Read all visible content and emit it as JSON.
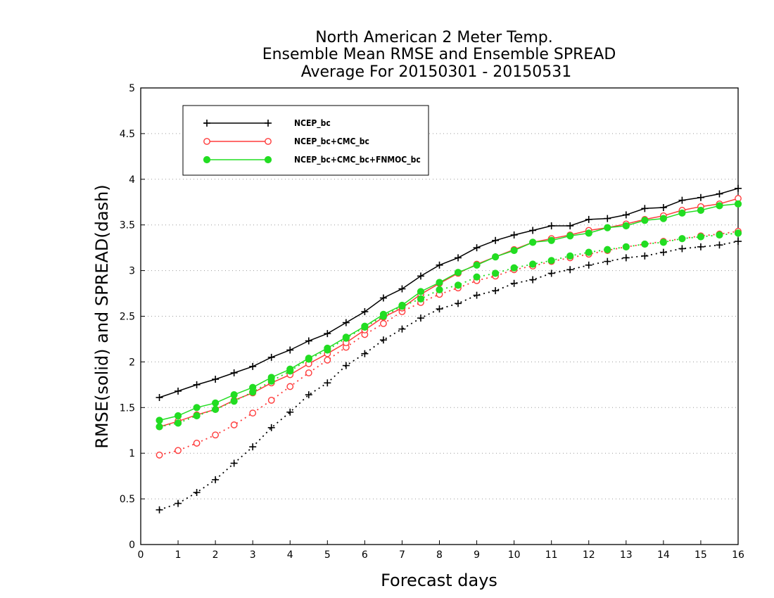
{
  "chart_data": {
    "type": "line",
    "title": [
      "North American 2 Meter Temp.",
      "Ensemble Mean RMSE and Ensemble SPREAD",
      "Average For 20150301 - 20150531"
    ],
    "xlabel": "Forecast days",
    "ylabel": "RMSE(solid) and SPREAD(dash)",
    "xlim": [
      0,
      16
    ],
    "ylim": [
      0,
      5
    ],
    "xticks": [
      0,
      1,
      2,
      3,
      4,
      5,
      6,
      7,
      8,
      9,
      10,
      11,
      12,
      13,
      14,
      15,
      16
    ],
    "yticks": [
      0,
      0.5,
      1,
      1.5,
      2,
      2.5,
      3,
      3.5,
      4,
      4.5,
      5
    ],
    "ytick_labels": [
      "0",
      "0.5",
      "1",
      "1.5",
      "2",
      "2.5",
      "3",
      "3.5",
      "4",
      "4.5",
      "5"
    ],
    "grid": "horizontal dotted",
    "legend_position": "top-left",
    "x": [
      0.5,
      1,
      1.5,
      2,
      2.5,
      3,
      3.5,
      4,
      4.5,
      5,
      5.5,
      6,
      6.5,
      7,
      7.5,
      8,
      8.5,
      9,
      9.5,
      10,
      10.5,
      11,
      11.5,
      12,
      12.5,
      13,
      13.5,
      14,
      14.5,
      15,
      15.5,
      16
    ],
    "series": [
      {
        "name": "NCEP_bc",
        "color": "#000000",
        "marker": "plus",
        "rmse": [
          1.61,
          1.68,
          1.75,
          1.81,
          1.88,
          1.95,
          2.05,
          2.13,
          2.23,
          2.31,
          2.43,
          2.55,
          2.7,
          2.8,
          2.94,
          3.06,
          3.14,
          3.25,
          3.33,
          3.39,
          3.44,
          3.49,
          3.49,
          3.56,
          3.57,
          3.61,
          3.68,
          3.69,
          3.77,
          3.8,
          3.84,
          3.9
        ],
        "spread": [
          0.38,
          0.45,
          0.57,
          0.71,
          0.89,
          1.07,
          1.28,
          1.45,
          1.64,
          1.77,
          1.96,
          2.09,
          2.24,
          2.36,
          2.48,
          2.58,
          2.64,
          2.73,
          2.78,
          2.86,
          2.9,
          2.97,
          3.01,
          3.06,
          3.1,
          3.14,
          3.16,
          3.2,
          3.24,
          3.26,
          3.28,
          3.32
        ]
      },
      {
        "name": "NCEP_bc+CMC_bc",
        "color": "#ff3b3b",
        "marker": "open-circle",
        "rmse": [
          1.29,
          1.35,
          1.42,
          1.48,
          1.58,
          1.66,
          1.77,
          1.86,
          1.98,
          2.09,
          2.21,
          2.35,
          2.49,
          2.59,
          2.74,
          2.86,
          2.97,
          3.07,
          3.15,
          3.23,
          3.31,
          3.35,
          3.39,
          3.44,
          3.47,
          3.51,
          3.56,
          3.6,
          3.66,
          3.7,
          3.73,
          3.79
        ],
        "spread": [
          0.98,
          1.03,
          1.11,
          1.2,
          1.31,
          1.44,
          1.58,
          1.73,
          1.88,
          2.02,
          2.16,
          2.3,
          2.42,
          2.55,
          2.65,
          2.74,
          2.81,
          2.89,
          2.94,
          3.01,
          3.05,
          3.1,
          3.14,
          3.18,
          3.22,
          3.26,
          3.29,
          3.32,
          3.35,
          3.38,
          3.4,
          3.43
        ]
      },
      {
        "name": "NCEP_bc+CMC_bc+FNMOC_bc",
        "color": "#22dd22",
        "marker": "filled-circle",
        "rmse": [
          1.36,
          1.41,
          1.5,
          1.55,
          1.64,
          1.72,
          1.83,
          1.92,
          2.04,
          2.15,
          2.27,
          2.39,
          2.52,
          2.62,
          2.77,
          2.87,
          2.98,
          3.06,
          3.15,
          3.22,
          3.31,
          3.33,
          3.38,
          3.41,
          3.47,
          3.49,
          3.55,
          3.57,
          3.63,
          3.66,
          3.71,
          3.73
        ],
        "spread": [
          1.29,
          1.33,
          1.41,
          1.48,
          1.57,
          1.67,
          1.79,
          1.9,
          2.03,
          2.13,
          2.26,
          2.38,
          2.5,
          2.61,
          2.69,
          2.79,
          2.84,
          2.93,
          2.97,
          3.03,
          3.07,
          3.11,
          3.16,
          3.2,
          3.23,
          3.26,
          3.29,
          3.31,
          3.35,
          3.37,
          3.39,
          3.41
        ]
      }
    ]
  }
}
